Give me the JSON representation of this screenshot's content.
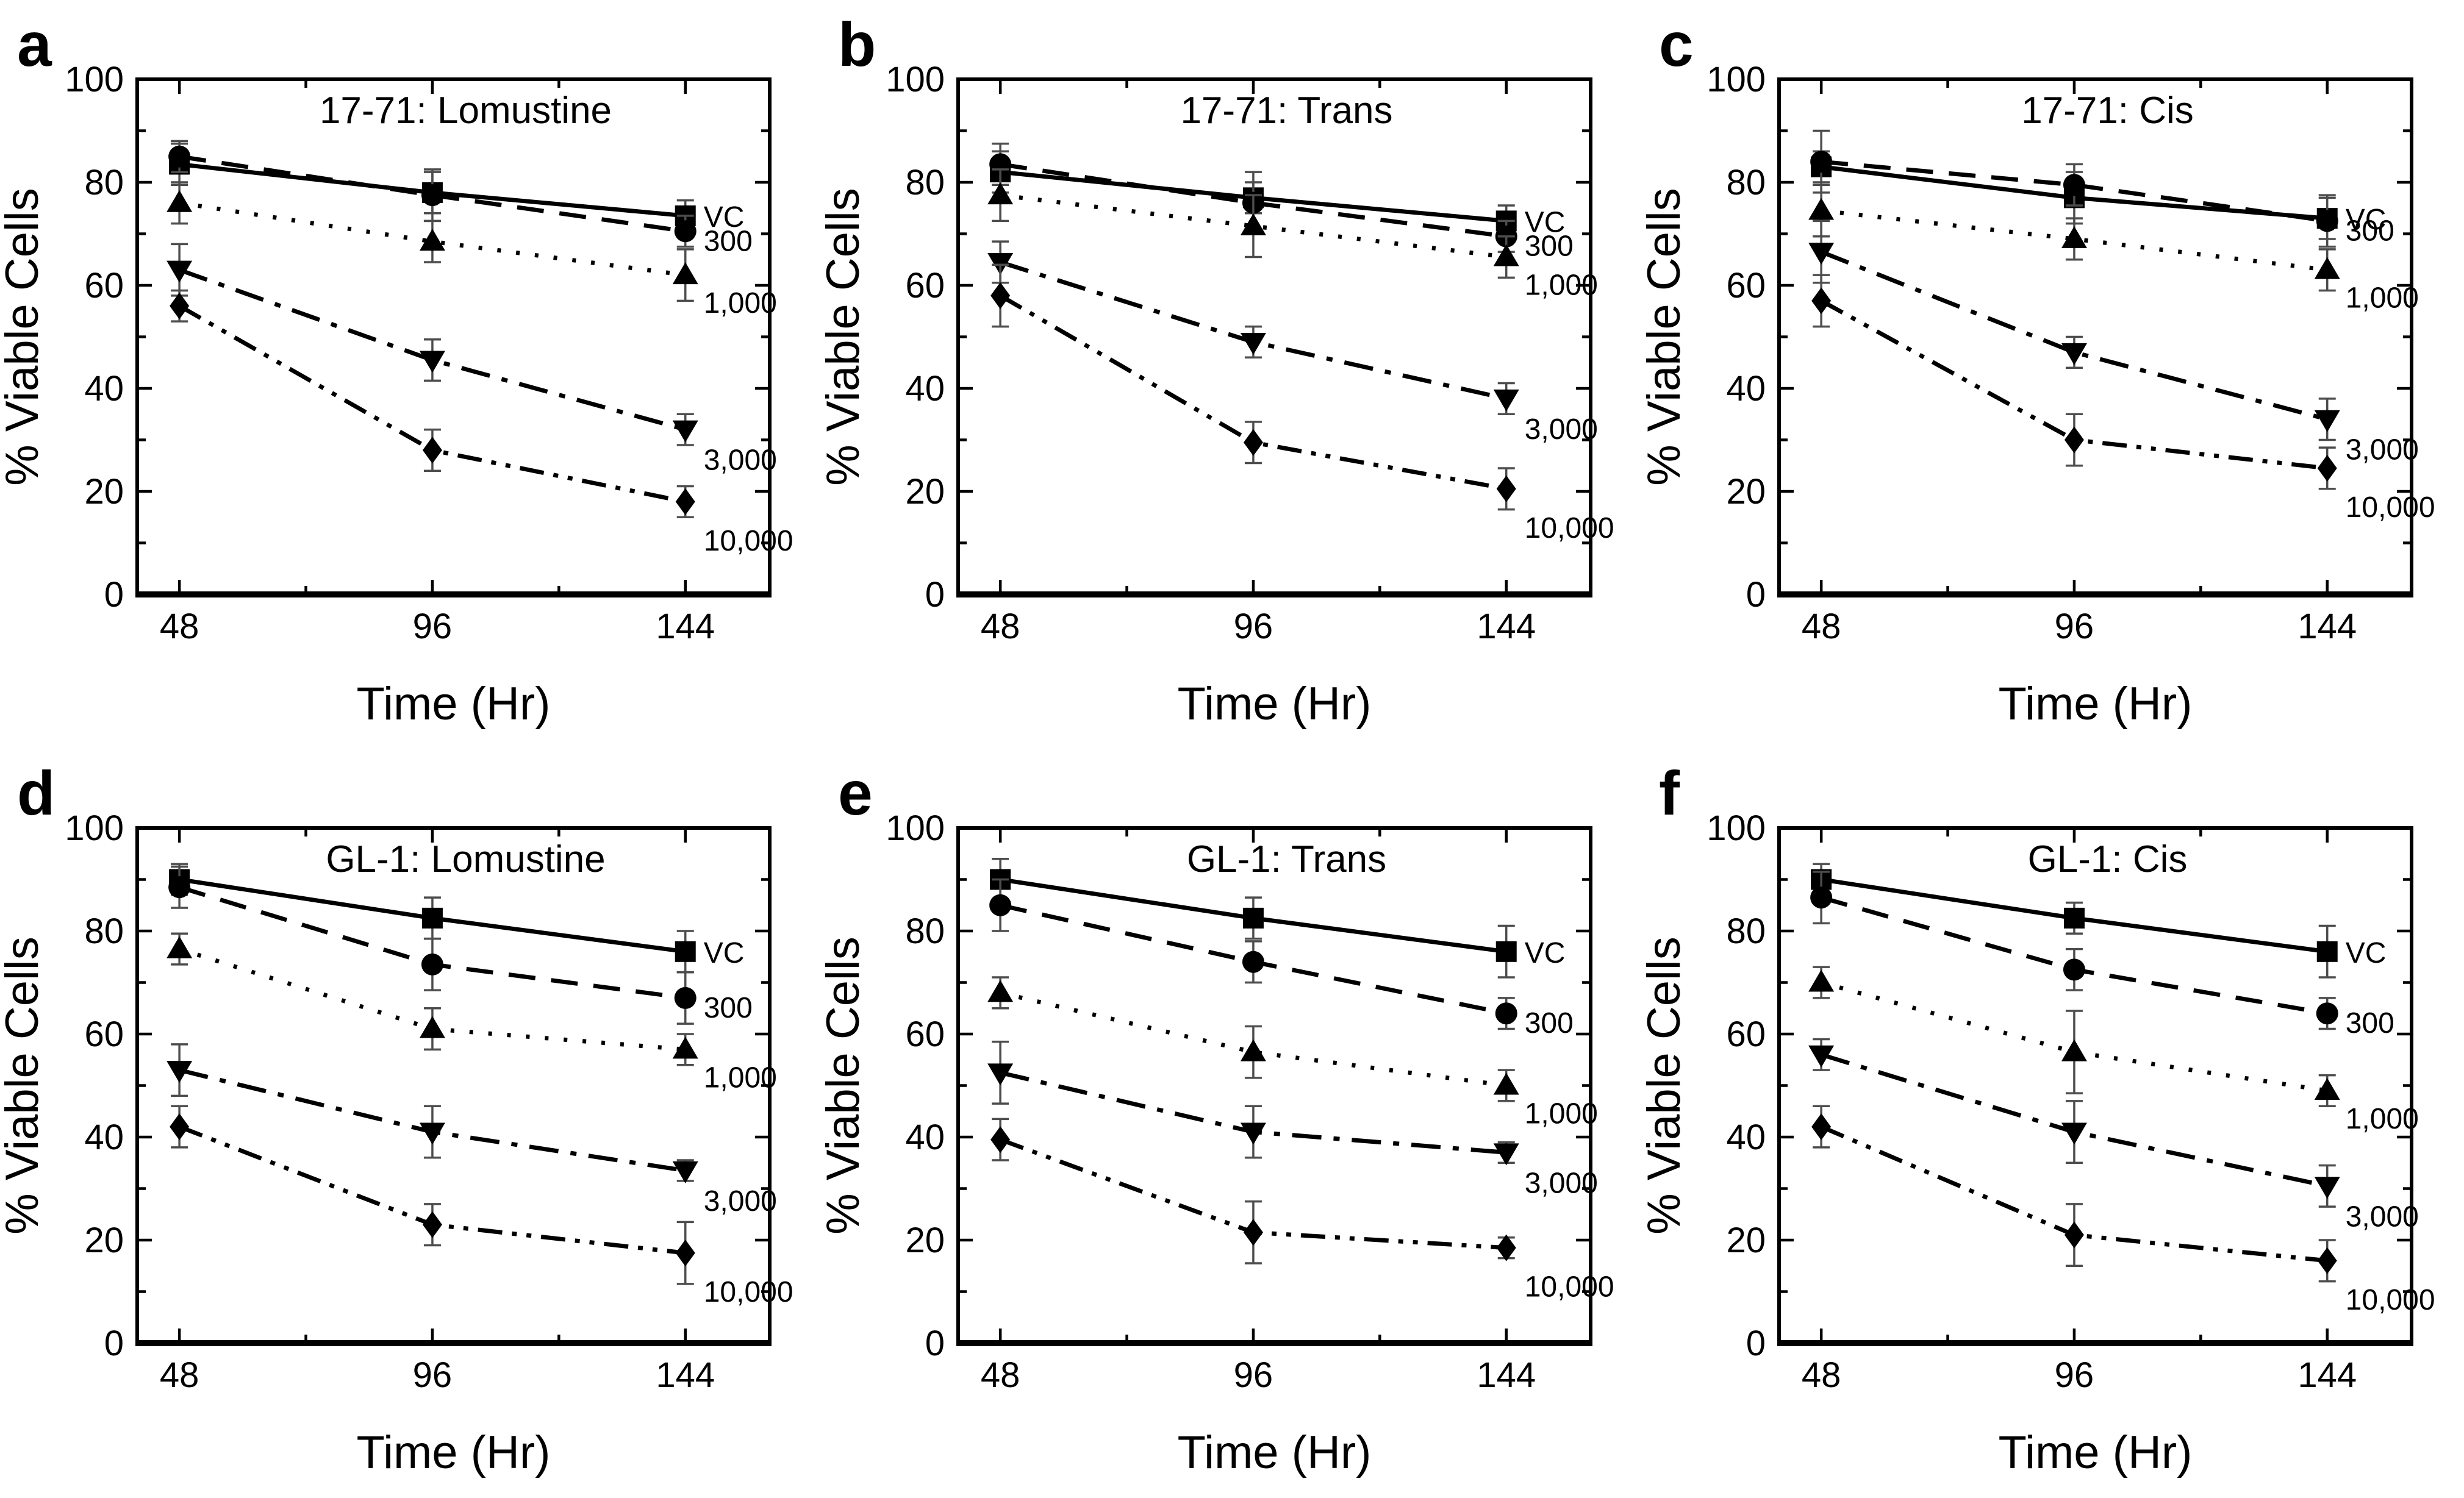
{
  "figure": {
    "background": "#ffffff",
    "ink_color": "#000000",
    "errorbar_color": "#4d4d4d",
    "xlabel": "Time (Hr)",
    "ylabel": "% Viable Cells",
    "panel_letters": [
      "a",
      "b",
      "c",
      "d",
      "e",
      "f"
    ]
  },
  "chart_data": [
    {
      "type": "line",
      "label": "a",
      "title": "17-71: Lomustine",
      "xlabel": "Time (Hr)",
      "ylabel": "% Viable Cells",
      "x": [
        48,
        96,
        144
      ],
      "xlim": [
        40,
        160
      ],
      "ylim": [
        0,
        100
      ],
      "yticks": [
        0,
        20,
        40,
        60,
        80,
        100
      ],
      "yticks_minor": [
        10,
        30,
        50,
        70,
        90
      ],
      "xticks_minor": [
        72,
        120
      ],
      "grid": false,
      "legend_position": "right-of-last-point",
      "series": [
        {
          "name": "VC",
          "marker": "square",
          "linestyle": "solid",
          "values": [
            83.5,
            78,
            73.5
          ],
          "errors": [
            4,
            4,
            3
          ]
        },
        {
          "name": "300",
          "marker": "circle",
          "linestyle": "dashed",
          "values": [
            85,
            77.5,
            70.5
          ],
          "errors": [
            3,
            5,
            3
          ]
        },
        {
          "name": "1,000",
          "marker": "triangle-up",
          "linestyle": "dotted",
          "values": [
            76,
            68.5,
            62
          ],
          "errors": [
            4,
            4,
            5
          ]
        },
        {
          "name": "3,000",
          "marker": "triangle-down",
          "linestyle": "dashdot",
          "values": [
            63,
            45.5,
            32
          ],
          "errors": [
            5,
            4,
            3
          ]
        },
        {
          "name": "10,000",
          "marker": "diamond",
          "linestyle": "dashdotdot",
          "values": [
            56,
            28,
            18
          ],
          "errors": [
            3,
            4,
            3
          ]
        }
      ]
    },
    {
      "type": "line",
      "label": "b",
      "title": "17-71: Trans",
      "xlabel": "Time (Hr)",
      "ylabel": "% Viable Cells",
      "x": [
        48,
        96,
        144
      ],
      "xlim": [
        40,
        160
      ],
      "ylim": [
        0,
        100
      ],
      "yticks": [
        0,
        20,
        40,
        60,
        80,
        100
      ],
      "yticks_minor": [
        10,
        30,
        50,
        70,
        90
      ],
      "xticks_minor": [
        72,
        120
      ],
      "grid": false,
      "legend_position": "right-of-last-point",
      "series": [
        {
          "name": "VC",
          "marker": "square",
          "linestyle": "solid",
          "values": [
            82,
            77,
            72.5
          ],
          "errors": [
            4,
            3,
            3
          ]
        },
        {
          "name": "300",
          "marker": "circle",
          "linestyle": "dashed",
          "values": [
            83.5,
            76,
            69.5
          ],
          "errors": [
            4,
            6,
            3
          ]
        },
        {
          "name": "1,000",
          "marker": "triangle-up",
          "linestyle": "dotted",
          "values": [
            77.5,
            71.5,
            65.5
          ],
          "errors": [
            5,
            6,
            4
          ]
        },
        {
          "name": "3,000",
          "marker": "triangle-down",
          "linestyle": "dashdot",
          "values": [
            64.5,
            49,
            38
          ],
          "errors": [
            4,
            3,
            3
          ]
        },
        {
          "name": "10,000",
          "marker": "diamond",
          "linestyle": "dashdotdot",
          "values": [
            58,
            29.5,
            20.5
          ],
          "errors": [
            6,
            4,
            4
          ]
        }
      ]
    },
    {
      "type": "line",
      "label": "c",
      "title": "17-71: Cis",
      "xlabel": "Time (Hr)",
      "ylabel": "% Viable Cells",
      "x": [
        48,
        96,
        144
      ],
      "xlim": [
        40,
        160
      ],
      "ylim": [
        0,
        100
      ],
      "yticks": [
        0,
        20,
        40,
        60,
        80,
        100
      ],
      "yticks_minor": [
        10,
        30,
        50,
        70,
        90
      ],
      "xticks_minor": [
        72,
        120
      ],
      "grid": false,
      "legend_position": "right-of-last-point",
      "series": [
        {
          "name": "VC",
          "marker": "square",
          "linestyle": "solid",
          "values": [
            83,
            77,
            73
          ],
          "errors": [
            3,
            5,
            4
          ]
        },
        {
          "name": "300",
          "marker": "circle",
          "linestyle": "dashed",
          "values": [
            84,
            79.5,
            72.5
          ],
          "errors": [
            6,
            4,
            5
          ]
        },
        {
          "name": "1,000",
          "marker": "triangle-up",
          "linestyle": "dotted",
          "values": [
            74.5,
            69,
            63
          ],
          "errors": [
            5,
            4,
            4
          ]
        },
        {
          "name": "3,000",
          "marker": "triangle-down",
          "linestyle": "dashdot",
          "values": [
            66.5,
            47,
            34
          ],
          "errors": [
            6,
            3,
            4
          ]
        },
        {
          "name": "10,000",
          "marker": "diamond",
          "linestyle": "dashdotdot",
          "values": [
            57,
            30,
            24.5
          ],
          "errors": [
            5,
            5,
            4
          ]
        }
      ]
    },
    {
      "type": "line",
      "label": "d",
      "title": "GL-1: Lomustine",
      "xlabel": "Time (Hr)",
      "ylabel": "% Viable Cells",
      "x": [
        48,
        96,
        144
      ],
      "xlim": [
        40,
        160
      ],
      "ylim": [
        0,
        100
      ],
      "yticks": [
        0,
        20,
        40,
        60,
        80,
        100
      ],
      "yticks_minor": [
        10,
        30,
        50,
        70,
        90
      ],
      "xticks_minor": [
        72,
        120
      ],
      "grid": false,
      "legend_position": "right-of-last-point",
      "series": [
        {
          "name": "VC",
          "marker": "square",
          "linestyle": "solid",
          "values": [
            90,
            82.5,
            76
          ],
          "errors": [
            3,
            4,
            4
          ]
        },
        {
          "name": "300",
          "marker": "circle",
          "linestyle": "dashed",
          "values": [
            88.5,
            73.5,
            67
          ],
          "errors": [
            4,
            5,
            5
          ]
        },
        {
          "name": "1,000",
          "marker": "triangle-up",
          "linestyle": "dotted",
          "values": [
            76.5,
            61,
            57
          ],
          "errors": [
            3,
            4,
            3
          ]
        },
        {
          "name": "3,000",
          "marker": "triangle-down",
          "linestyle": "dashdot",
          "values": [
            53,
            41,
            33.5
          ],
          "errors": [
            5,
            5,
            2
          ]
        },
        {
          "name": "10,000",
          "marker": "diamond",
          "linestyle": "dashdotdot",
          "values": [
            42,
            23,
            17.5
          ],
          "errors": [
            4,
            4,
            6
          ]
        }
      ]
    },
    {
      "type": "line",
      "label": "e",
      "title": "GL-1: Trans",
      "xlabel": "Time (Hr)",
      "ylabel": "% Viable Cells",
      "x": [
        48,
        96,
        144
      ],
      "xlim": [
        40,
        160
      ],
      "ylim": [
        0,
        100
      ],
      "yticks": [
        0,
        20,
        40,
        60,
        80,
        100
      ],
      "yticks_minor": [
        10,
        30,
        50,
        70,
        90
      ],
      "xticks_minor": [
        72,
        120
      ],
      "grid": false,
      "legend_position": "right-of-last-point",
      "series": [
        {
          "name": "VC",
          "marker": "square",
          "linestyle": "solid",
          "values": [
            90,
            82.5,
            76
          ],
          "errors": [
            4,
            4,
            5
          ]
        },
        {
          "name": "300",
          "marker": "circle",
          "linestyle": "dashed",
          "values": [
            85,
            74,
            64
          ],
          "errors": [
            5,
            4,
            3
          ]
        },
        {
          "name": "1,000",
          "marker": "triangle-up",
          "linestyle": "dotted",
          "values": [
            68,
            56.5,
            50
          ],
          "errors": [
            3,
            5,
            3
          ]
        },
        {
          "name": "3,000",
          "marker": "triangle-down",
          "linestyle": "dashdot",
          "values": [
            52.5,
            41,
            37
          ],
          "errors": [
            6,
            5,
            2
          ]
        },
        {
          "name": "10,000",
          "marker": "diamond",
          "linestyle": "dashdotdot",
          "values": [
            39.5,
            21.5,
            18.5
          ],
          "errors": [
            4,
            6,
            2
          ]
        }
      ]
    },
    {
      "type": "line",
      "label": "f",
      "title": "GL-1: Cis",
      "xlabel": "Time (Hr)",
      "ylabel": "% Viable Cells",
      "x": [
        48,
        96,
        144
      ],
      "xlim": [
        40,
        160
      ],
      "ylim": [
        0,
        100
      ],
      "yticks": [
        0,
        20,
        40,
        60,
        80,
        100
      ],
      "yticks_minor": [
        10,
        30,
        50,
        70,
        90
      ],
      "xticks_minor": [
        72,
        120
      ],
      "grid": false,
      "legend_position": "right-of-last-point",
      "series": [
        {
          "name": "VC",
          "marker": "square",
          "linestyle": "solid",
          "values": [
            90,
            82.5,
            76
          ],
          "errors": [
            3,
            3,
            5
          ]
        },
        {
          "name": "300",
          "marker": "circle",
          "linestyle": "dashed",
          "values": [
            86.5,
            72.5,
            64
          ],
          "errors": [
            5,
            4,
            3
          ]
        },
        {
          "name": "1,000",
          "marker": "triangle-up",
          "linestyle": "dotted",
          "values": [
            70,
            56.5,
            49
          ],
          "errors": [
            3,
            8,
            3
          ]
        },
        {
          "name": "3,000",
          "marker": "triangle-down",
          "linestyle": "dashdot",
          "values": [
            56,
            41,
            30.5
          ],
          "errors": [
            3,
            6,
            4
          ]
        },
        {
          "name": "10,000",
          "marker": "diamond",
          "linestyle": "dashdotdot",
          "values": [
            42,
            21,
            16
          ],
          "errors": [
            4,
            6,
            4
          ]
        }
      ]
    }
  ]
}
